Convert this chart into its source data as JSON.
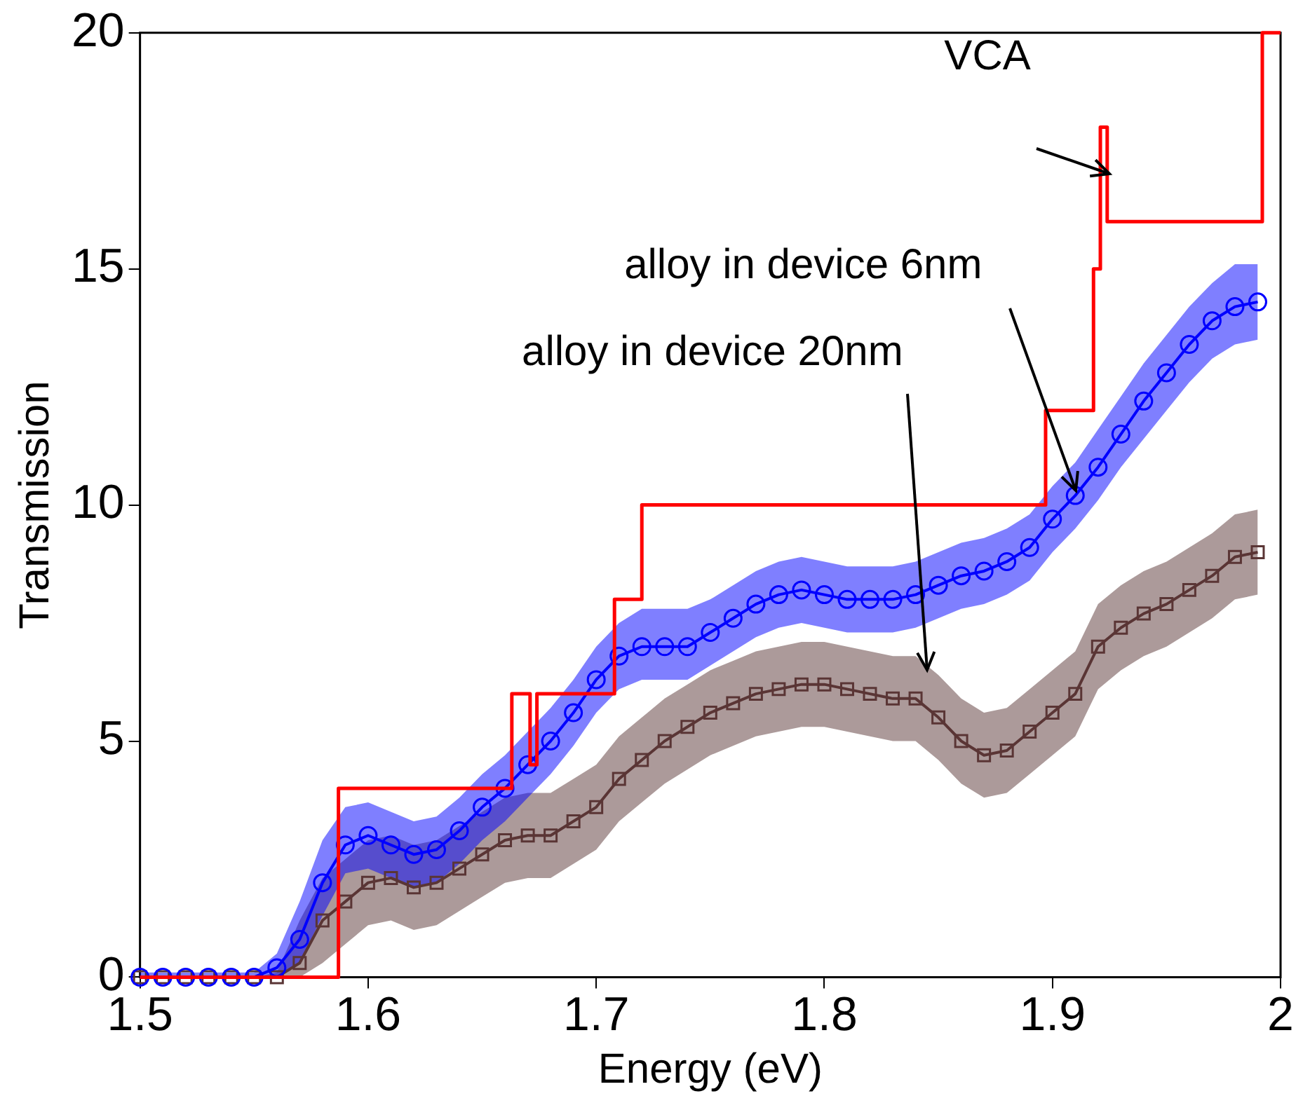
{
  "chart_data": {
    "type": "line",
    "xlabel": "Energy (eV)",
    "ylabel": "Transmission",
    "x": [
      1.5,
      1.51,
      1.52,
      1.53,
      1.54,
      1.55,
      1.56,
      1.57,
      1.58,
      1.59,
      1.6,
      1.61,
      1.62,
      1.63,
      1.64,
      1.65,
      1.66,
      1.67,
      1.68,
      1.69,
      1.7,
      1.71,
      1.72,
      1.73,
      1.74,
      1.75,
      1.76,
      1.77,
      1.78,
      1.79,
      1.8,
      1.81,
      1.82,
      1.83,
      1.84,
      1.85,
      1.86,
      1.87,
      1.88,
      1.89,
      1.9,
      1.91,
      1.92,
      1.93,
      1.94,
      1.95,
      1.96,
      1.97,
      1.98,
      1.99
    ],
    "series": [
      {
        "type": "step",
        "color": "#ff0000",
        "marker": "none",
        "x": [
          1.5,
          1.587,
          1.663,
          1.671,
          1.674,
          1.708,
          1.72,
          1.897,
          1.918,
          1.921,
          1.924,
          1.927,
          1.992,
          2.0
        ],
        "values": [
          0,
          4,
          6,
          4.5,
          6,
          8,
          10,
          12,
          15,
          18,
          16,
          16,
          20,
          20
        ]
      },
      {
        "color": "#0000ff",
        "marker": "circle",
        "values": [
          0,
          0,
          0,
          0,
          0,
          0,
          0.2,
          0.8,
          2.0,
          2.8,
          3.0,
          2.8,
          2.6,
          2.7,
          3.1,
          3.6,
          4.0,
          4.5,
          5.0,
          5.6,
          6.3,
          6.8,
          7.0,
          7.0,
          7.0,
          7.3,
          7.6,
          7.9,
          8.1,
          8.2,
          8.1,
          8.0,
          8.0,
          8.0,
          8.1,
          8.3,
          8.5,
          8.6,
          8.8,
          9.1,
          9.7,
          10.2,
          10.8,
          11.5,
          12.2,
          12.8,
          13.4,
          13.9,
          14.2,
          14.3
        ],
        "lower": [
          0,
          0,
          0,
          0,
          0,
          0,
          0,
          0.3,
          1.3,
          2.2,
          2.3,
          2.1,
          1.9,
          2.0,
          2.4,
          2.9,
          3.3,
          3.8,
          4.3,
          4.9,
          5.6,
          6.1,
          6.3,
          6.3,
          6.3,
          6.6,
          6.9,
          7.2,
          7.4,
          7.5,
          7.4,
          7.3,
          7.3,
          7.3,
          7.4,
          7.6,
          7.8,
          7.9,
          8.1,
          8.4,
          9.0,
          9.5,
          10.1,
          10.8,
          11.4,
          12.0,
          12.6,
          13.1,
          13.4,
          13.5
        ],
        "upper": [
          0.1,
          0.1,
          0.1,
          0.1,
          0.1,
          0.1,
          0.5,
          1.6,
          2.9,
          3.6,
          3.7,
          3.5,
          3.3,
          3.4,
          3.8,
          4.3,
          4.7,
          5.2,
          5.7,
          6.3,
          7.0,
          7.5,
          7.8,
          7.8,
          7.8,
          8.0,
          8.3,
          8.6,
          8.8,
          8.9,
          8.8,
          8.7,
          8.7,
          8.7,
          8.8,
          9.0,
          9.2,
          9.3,
          9.5,
          9.8,
          10.4,
          10.9,
          11.6,
          12.3,
          13.0,
          13.6,
          14.2,
          14.7,
          15.1,
          15.1
        ]
      },
      {
        "color": "#5a3535",
        "marker": "square",
        "values": [
          0,
          0,
          0,
          0,
          0,
          0,
          0,
          0.3,
          1.2,
          1.6,
          2.0,
          2.1,
          1.9,
          2.0,
          2.3,
          2.6,
          2.9,
          3.0,
          3.0,
          3.3,
          3.6,
          4.2,
          4.6,
          5.0,
          5.3,
          5.6,
          5.8,
          6.0,
          6.1,
          6.2,
          6.2,
          6.1,
          6.0,
          5.9,
          5.9,
          5.5,
          5.0,
          4.7,
          4.8,
          5.2,
          5.6,
          6.0,
          7.0,
          7.4,
          7.7,
          7.9,
          8.2,
          8.5,
          8.9,
          9.0
        ],
        "lower": [
          0,
          0,
          0,
          0,
          0,
          0,
          0,
          0,
          0.3,
          0.7,
          1.1,
          1.2,
          1.0,
          1.1,
          1.4,
          1.7,
          2.0,
          2.1,
          2.1,
          2.4,
          2.7,
          3.3,
          3.7,
          4.1,
          4.4,
          4.7,
          4.9,
          5.1,
          5.2,
          5.3,
          5.3,
          5.2,
          5.1,
          5.0,
          5.0,
          4.6,
          4.1,
          3.8,
          3.9,
          4.3,
          4.7,
          5.1,
          6.1,
          6.5,
          6.8,
          7.0,
          7.3,
          7.6,
          8.0,
          8.1
        ],
        "upper": [
          0,
          0,
          0,
          0,
          0,
          0,
          0.1,
          1.2,
          2.1,
          2.5,
          2.9,
          3.0,
          2.8,
          2.9,
          3.2,
          3.5,
          3.8,
          3.9,
          3.9,
          4.2,
          4.5,
          5.1,
          5.5,
          5.9,
          6.2,
          6.5,
          6.7,
          6.9,
          7.0,
          7.1,
          7.1,
          7.0,
          6.9,
          6.8,
          6.8,
          6.4,
          5.9,
          5.6,
          5.7,
          6.1,
          6.5,
          6.9,
          7.9,
          8.3,
          8.6,
          8.8,
          9.1,
          9.4,
          9.8,
          9.9
        ]
      }
    ],
    "xlim": [
      1.5,
      2
    ],
    "xticks": [
      1.5,
      1.6,
      1.7,
      1.8,
      1.9,
      2
    ],
    "ylim": [
      0,
      20
    ],
    "yticks": [
      0,
      5,
      10,
      15,
      20
    ],
    "grid": false,
    "legend": false,
    "annotations": [
      {
        "text": "VCA",
        "x": 1.925,
        "y": 17
      },
      {
        "text": "alloy in device 6nm",
        "x": 1.91,
        "y": 10.3
      },
      {
        "text": "alloy in device 20nm",
        "x": 1.845,
        "y": 6.5
      }
    ]
  }
}
